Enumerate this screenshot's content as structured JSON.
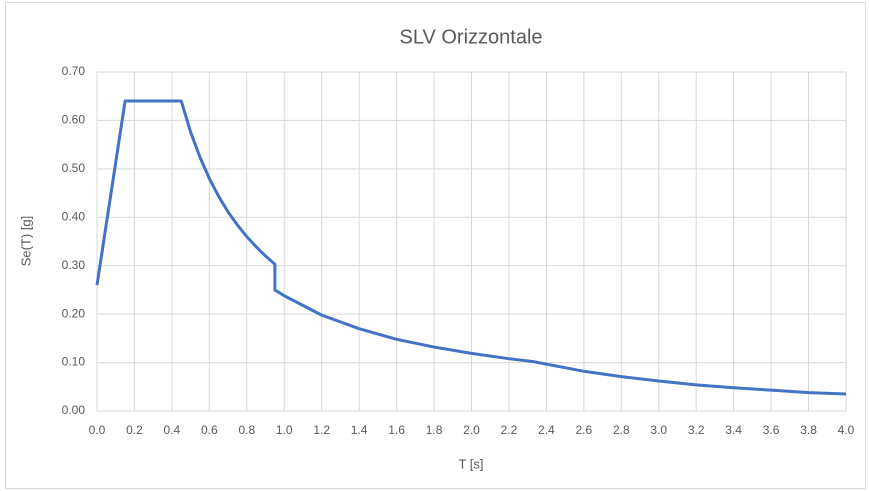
{
  "chart_data": {
    "type": "line",
    "title": "SLV Orizzontale",
    "x_label": "T [s]",
    "y_label": "Se(T) [g]",
    "x": [
      0,
      0.15,
      0.45,
      0.5,
      0.55,
      0.6,
      0.65,
      0.7,
      0.75,
      0.8,
      0.85,
      0.9,
      0.95,
      0.95,
      1.0,
      1.2,
      1.4,
      1.6,
      1.8,
      2.0,
      2.2,
      2.33,
      2.6,
      2.8,
      3.0,
      3.2,
      3.4,
      3.6,
      3.8,
      4.0
    ],
    "series": [
      {
        "name": "Se(T)",
        "color": "#4472c4",
        "values": [
          0.26,
          0.64,
          0.64,
          0.576,
          0.524,
          0.48,
          0.443,
          0.411,
          0.384,
          0.36,
          0.339,
          0.32,
          0.303,
          0.25,
          0.238,
          0.198,
          0.17,
          0.148,
          0.132,
          0.119,
          0.108,
          0.102,
          0.082,
          0.071,
          0.062,
          0.054,
          0.048,
          0.043,
          0.038,
          0.035
        ]
      }
    ],
    "xlim": [
      0,
      4
    ],
    "ylim": [
      0,
      0.7
    ],
    "xticks": [
      {
        "value": 0,
        "label": "0.0"
      },
      0.2,
      0.4,
      0.6,
      0.8,
      {
        "value": 1,
        "label": "1.0"
      },
      1.2,
      1.4,
      1.6,
      1.8,
      {
        "value": 2,
        "label": "2.0"
      },
      2.2,
      2.4,
      2.6,
      2.8,
      {
        "value": 3,
        "label": "3.0"
      },
      3.2,
      3.4,
      3.6,
      3.8,
      {
        "value": 4,
        "label": "4.0"
      }
    ],
    "yticks": [
      {
        "value": 0,
        "label": "0.00"
      },
      {
        "value": 0.1,
        "label": "0.10"
      },
      {
        "value": 0.2,
        "label": "0.20"
      },
      {
        "value": 0.3,
        "label": "0.30"
      },
      {
        "value": 0.4,
        "label": "0.40"
      },
      {
        "value": 0.5,
        "label": "0.50"
      },
      {
        "value": 0.6,
        "label": "0.60"
      },
      {
        "value": 0.7,
        "label": "0.70"
      }
    ],
    "grid": true
  }
}
